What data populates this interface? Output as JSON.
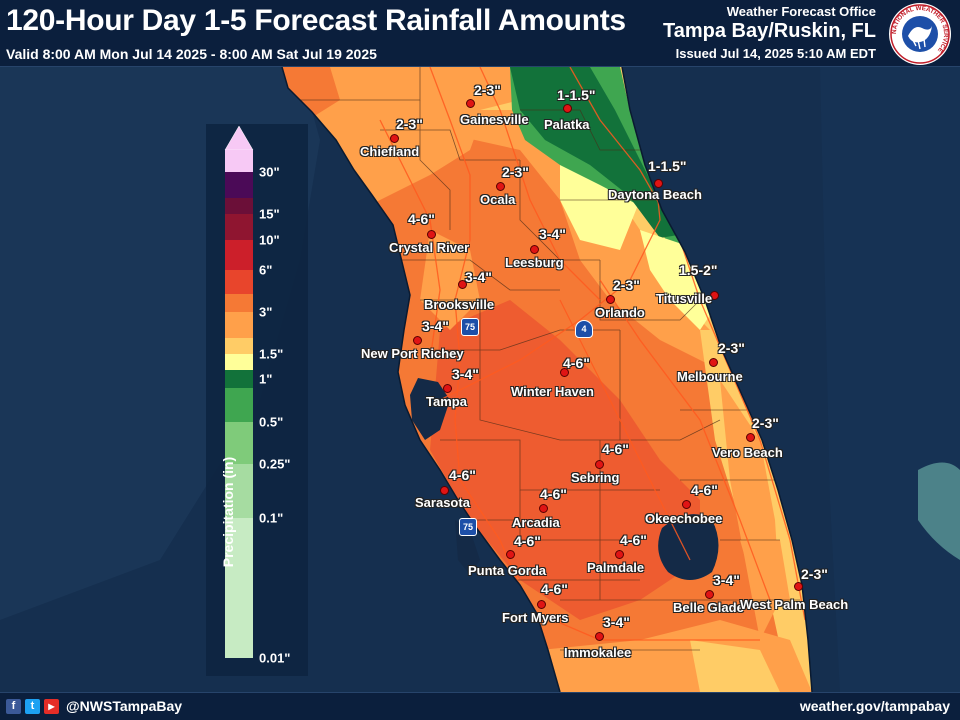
{
  "header": {
    "title": "120-Hour Day 1-5 Forecast Rainfall Amounts",
    "valid_period": "Valid 8:00 AM Mon Jul 14 2025 - 8:00 AM Sat Jul 19 2025",
    "office_label": "Weather Forecast Office",
    "office_location": "Tampa Bay/Ruskin, FL",
    "issued": "Issued Jul 14, 2025 5:10 AM EDT",
    "logo_text": "NATIONAL WEATHER SERVICE",
    "logo_icon": "nws-logo-icon"
  },
  "legend": {
    "title": "Precipitation (in)",
    "ticks": [
      "30\"",
      "15\"",
      "10\"",
      "6\"",
      "3\"",
      "1.5\"",
      "1\"",
      "0.5\"",
      "0.25\"",
      "0.1\"",
      "0.01\""
    ],
    "colors": {
      "0.01-0.1": "#c7ebc3",
      "0.1-0.25": "#a6dca1",
      "0.25-0.5": "#7fcb7a",
      "0.5-1": "#3fa650",
      "1-1.5": "#12723a",
      "1.5-2": "#ffff99",
      "2-3": "#ffcc66",
      "3-4": "#ffa04a",
      "4-6": "#f57935",
      "6-8": "#e8452c",
      "8-10": "#cc1f2a",
      "10-15": "#8f1530",
      "15-20": "#6b0f38",
      "20-30": "#4b0a57",
      "30+": "#f7c9f5"
    }
  },
  "locations": [
    {
      "name": "Gainesville",
      "amount": "2-3\""
    },
    {
      "name": "Palatka",
      "amount": "1-1.5\""
    },
    {
      "name": "Chiefland",
      "amount": "2-3\""
    },
    {
      "name": "Ocala",
      "amount": "2-3\""
    },
    {
      "name": "Daytona Beach",
      "amount": "1-1.5\""
    },
    {
      "name": "Crystal River",
      "amount": "4-6\""
    },
    {
      "name": "Leesburg",
      "amount": "3-4\""
    },
    {
      "name": "Titusville",
      "amount": "1.5-2\""
    },
    {
      "name": "Brooksville",
      "amount": "3-4\""
    },
    {
      "name": "Orlando",
      "amount": "2-3\""
    },
    {
      "name": "New Port Richey",
      "amount": "3-4\""
    },
    {
      "name": "Melbourne",
      "amount": "2-3\""
    },
    {
      "name": "Tampa",
      "amount": "3-4\""
    },
    {
      "name": "Winter Haven",
      "amount": "4-6\""
    },
    {
      "name": "Vero Beach",
      "amount": "2-3\""
    },
    {
      "name": "Sebring",
      "amount": "4-6\""
    },
    {
      "name": "Sarasota",
      "amount": "4-6\""
    },
    {
      "name": "Arcadia",
      "amount": "4-6\""
    },
    {
      "name": "Okeechobee",
      "amount": "4-6\""
    },
    {
      "name": "Punta Gorda",
      "amount": "4-6\""
    },
    {
      "name": "Palmdale",
      "amount": "4-6\""
    },
    {
      "name": "Fort Myers",
      "amount": "4-6\""
    },
    {
      "name": "Belle Glade",
      "amount": "3-4\""
    },
    {
      "name": "West Palm Beach",
      "amount": "2-3\""
    },
    {
      "name": "Immokalee",
      "amount": "3-4\""
    }
  ],
  "highways": [
    {
      "label": "75",
      "icon": "interstate-75-shield-icon"
    },
    {
      "label": "4",
      "icon": "interstate-4-shield-icon"
    },
    {
      "label": "75",
      "icon": "interstate-75-shield-icon"
    }
  ],
  "footer": {
    "social_icons": [
      "facebook-icon",
      "twitter-icon",
      "youtube-icon"
    ],
    "social_glyphs": [
      "f",
      "t",
      "▶"
    ],
    "handle": "@NWSTampaBay",
    "website": "weather.gov/tampabay"
  }
}
